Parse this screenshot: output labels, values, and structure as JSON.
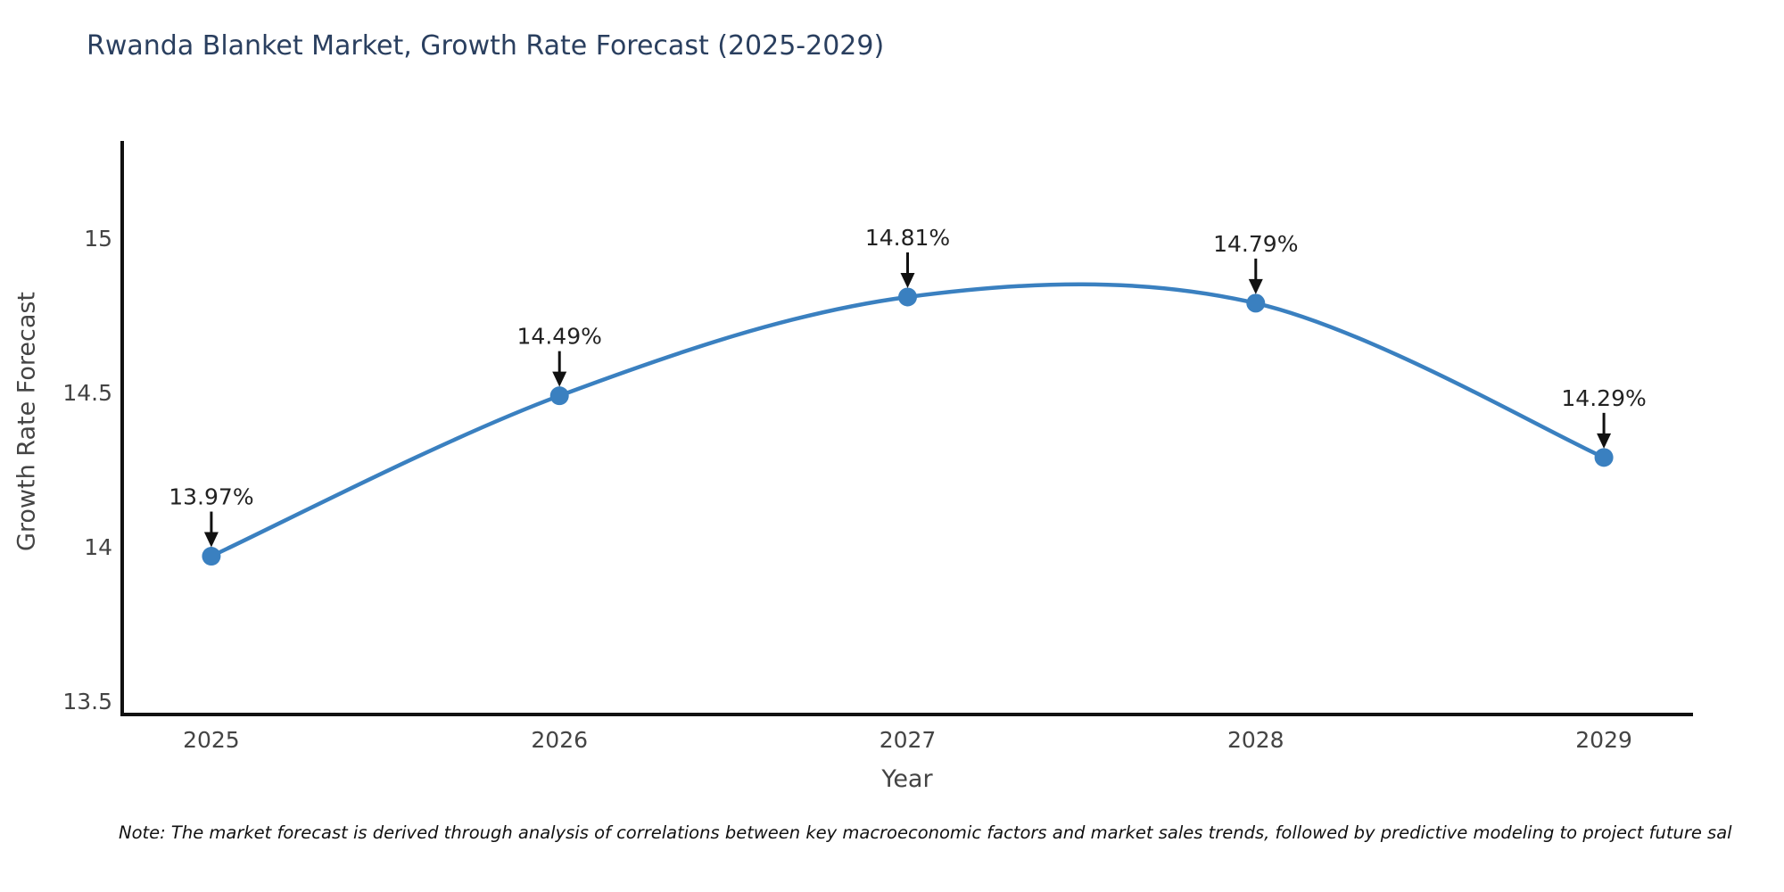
{
  "title": "Rwanda Blanket Market, Growth Rate Forecast (2025-2029)",
  "note": "Note: The market forecast is derived through analysis of correlations between key macroeconomic factors and market sales trends, followed by predictive modeling to project future sal",
  "chart_data": {
    "type": "line",
    "title": "Rwanda Blanket Market, Growth Rate Forecast (2025-2029)",
    "xlabel": "Year",
    "ylabel": "Growth Rate Forecast",
    "x": [
      2025,
      2026,
      2027,
      2028,
      2029
    ],
    "values": [
      13.97,
      14.49,
      14.81,
      14.79,
      14.29
    ],
    "point_labels": [
      "13.97%",
      "14.49%",
      "14.81%",
      "14.79%",
      "14.29%"
    ],
    "x_tick_labels": [
      "2025",
      "2026",
      "2027",
      "2028",
      "2029"
    ],
    "y_ticks": [
      13.5,
      14,
      14.5,
      15
    ],
    "y_tick_labels": [
      "13.5",
      "14",
      "14.5",
      "15"
    ],
    "xlim": [
      2024.744,
      2029.256
    ],
    "ylim": [
      13.457,
      15.31
    ],
    "grid": false,
    "legend": false,
    "smooth": true,
    "line_color": "#3a80c0",
    "marker_color": "#3a80c0",
    "marker_radius": 10.5,
    "line_width": 4.5,
    "axis_color": "#111111",
    "tick_color": "#444444",
    "annotation_color": "#222222"
  },
  "colors": {
    "title": "#2a3f5f",
    "axis_title": "#444444",
    "background": "#ffffff",
    "note": "#111111"
  }
}
